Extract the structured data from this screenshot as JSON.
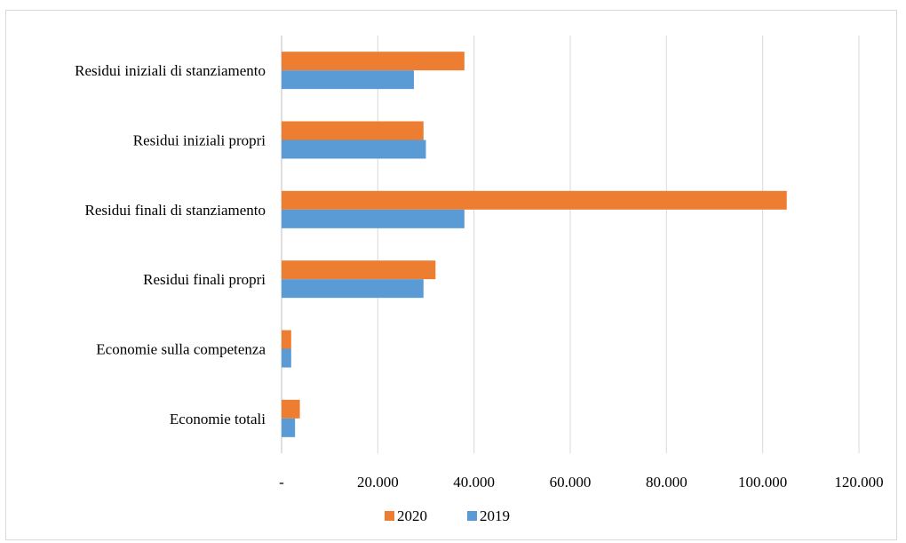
{
  "chart_data": {
    "type": "bar",
    "orientation": "horizontal",
    "categories": [
      "Residui iniziali di stanziamento",
      "Residui iniziali propri",
      "Residui finali di stanziamento",
      "Residui finali propri",
      "Economie sulla competenza",
      "Economie totali"
    ],
    "series": [
      {
        "name": "2020",
        "color": "#ED7D31",
        "values": [
          38000,
          29500,
          105000,
          32000,
          2000,
          3800
        ]
      },
      {
        "name": "2019",
        "color": "#5B9BD5",
        "values": [
          27500,
          30000,
          38000,
          29500,
          2000,
          2800
        ]
      }
    ],
    "xlim": [
      0,
      120000
    ],
    "xticks": [
      0,
      20000,
      40000,
      60000,
      80000,
      100000,
      120000
    ],
    "tick_labels": [
      "-",
      "20.000",
      "40.000",
      "60.000",
      "80.000",
      "100.000",
      "120.000"
    ],
    "title": "",
    "xlabel": "",
    "ylabel": "",
    "grid": "vertical",
    "legend_position": "bottom"
  }
}
